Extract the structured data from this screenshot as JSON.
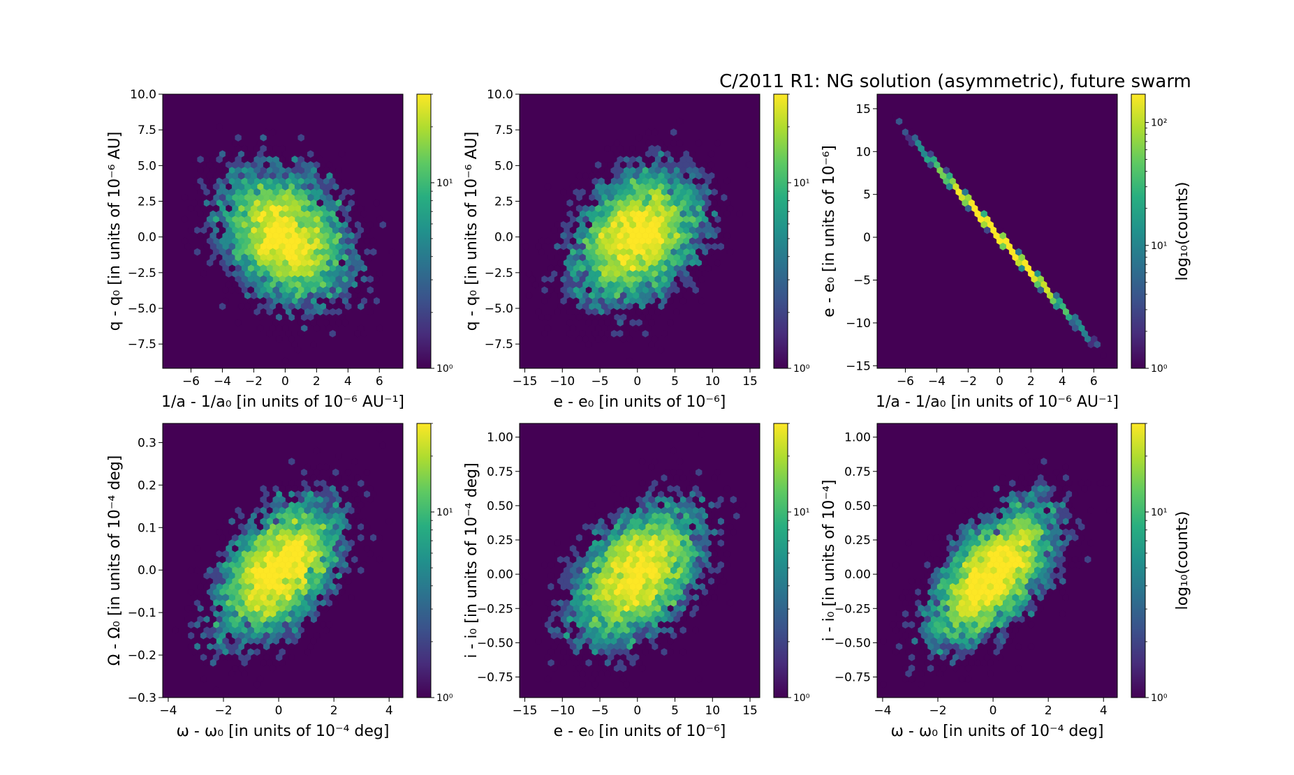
{
  "figure": {
    "title": "C/2011 R1: NG solution (asymmetric), future swarm"
  },
  "chart_data": [
    {
      "type": "heatmap",
      "subtype": "hexbin",
      "panel": "top-left",
      "xlabel": "1/a - 1/a₀ [in units of 10⁻⁶ AU⁻¹]",
      "ylabel": "q - q₀ [in units of 10⁻⁶ AU]",
      "xlim": [
        -7.8,
        7.5
      ],
      "ylim": [
        -9.2,
        10.0
      ],
      "xticks": [
        -6,
        -4,
        -2,
        0,
        2,
        4,
        6
      ],
      "xtick_labels": [
        "−6",
        "−4",
        "−2",
        "0",
        "2",
        "4",
        "6"
      ],
      "yticks": [
        -7.5,
        -5.0,
        -2.5,
        0.0,
        2.5,
        5.0,
        7.5,
        10.0
      ],
      "ytick_labels": [
        "−7.5",
        "−5.0",
        "−2.5",
        "0.0",
        "2.5",
        "5.0",
        "7.5",
        "10.0"
      ],
      "distribution": {
        "mean": [
          0,
          0
        ],
        "sd": [
          2.0,
          2.3
        ],
        "corr": -0.3
      },
      "colorbar": {
        "scale": "log",
        "min": 1,
        "max": 30,
        "ticks": [
          1,
          10
        ],
        "tick_labels": [
          "10⁰",
          "10¹"
        ],
        "label": ""
      }
    },
    {
      "type": "heatmap",
      "subtype": "hexbin",
      "panel": "top-middle",
      "xlabel": "e - e₀ [in units of 10⁻⁶]",
      "ylabel": "q - q₀ [in units of 10⁻⁶ AU]",
      "xlim": [
        -15.7,
        16.3
      ],
      "ylim": [
        -9.2,
        10.0
      ],
      "xticks": [
        -15,
        -10,
        -5,
        0,
        5,
        10,
        15
      ],
      "xtick_labels": [
        "−15",
        "−10",
        "−5",
        "0",
        "5",
        "10",
        "15"
      ],
      "yticks": [
        -7.5,
        -5.0,
        -2.5,
        0.0,
        2.5,
        5.0,
        7.5,
        10.0
      ],
      "ytick_labels": [
        "−7.5",
        "−5.0",
        "−2.5",
        "0.0",
        "2.5",
        "5.0",
        "7.5",
        "10.0"
      ],
      "distribution": {
        "mean": [
          0,
          0
        ],
        "sd": [
          4.2,
          2.3
        ],
        "corr": 0.3
      },
      "colorbar": {
        "scale": "log",
        "min": 1,
        "max": 30,
        "ticks": [
          1,
          10
        ],
        "tick_labels": [
          "10⁰",
          "10¹"
        ],
        "label": ""
      }
    },
    {
      "type": "heatmap",
      "subtype": "hexbin",
      "panel": "top-right",
      "title": "C/2011 R1: NG solution (asymmetric), future swarm",
      "xlabel": "1/a - 1/a₀ [in units of 10⁻⁶ AU⁻¹]",
      "ylabel": "e - e₀ [in units of 10⁻⁶]",
      "xlim": [
        -7.8,
        7.5
      ],
      "ylim": [
        -15.3,
        16.7
      ],
      "xticks": [
        -6,
        -4,
        -2,
        0,
        2,
        4,
        6
      ],
      "xtick_labels": [
        "−6",
        "−4",
        "−2",
        "0",
        "2",
        "4",
        "6"
      ],
      "yticks": [
        -15,
        -10,
        -5,
        0,
        5,
        10,
        15
      ],
      "ytick_labels": [
        "−15",
        "−10",
        "−5",
        "0",
        "5",
        "10",
        "15"
      ],
      "line": {
        "slope": -2.07,
        "x_range": [
          -7.7,
          7.1
        ]
      },
      "distribution": {
        "mean": [
          0,
          0
        ],
        "sd": [
          2.0,
          4.1
        ],
        "corr": -1.0
      },
      "colorbar": {
        "scale": "log",
        "min": 1,
        "max": 170,
        "ticks": [
          1,
          10,
          100
        ],
        "tick_labels": [
          "10⁰",
          "10¹",
          "10²"
        ],
        "label": "log₁₀(counts)"
      }
    },
    {
      "type": "heatmap",
      "subtype": "hexbin",
      "panel": "bottom-left",
      "xlabel": "ω - ω₀ [in units of 10⁻⁴ deg]",
      "ylabel": "Ω - Ω₀ [in units of 10⁻⁴ deg]",
      "xlim": [
        -4.2,
        4.5
      ],
      "ylim": [
        -0.3,
        0.345
      ],
      "xticks": [
        -4,
        -2,
        0,
        2,
        4
      ],
      "xtick_labels": [
        "−4",
        "−2",
        "0",
        "2",
        "4"
      ],
      "yticks": [
        -0.3,
        -0.2,
        -0.1,
        0.0,
        0.1,
        0.2,
        0.3
      ],
      "ytick_labels": [
        "−0.3",
        "−0.2",
        "−0.1",
        "0.0",
        "0.1",
        "0.2",
        "0.3"
      ],
      "distribution": {
        "mean": [
          0,
          0
        ],
        "sd": [
          1.1,
          0.08
        ],
        "corr": 0.5
      },
      "colorbar": {
        "scale": "log",
        "min": 1,
        "max": 30,
        "ticks": [
          1,
          10
        ],
        "tick_labels": [
          "10⁰",
          "10¹"
        ],
        "label": ""
      }
    },
    {
      "type": "heatmap",
      "subtype": "hexbin",
      "panel": "bottom-middle",
      "xlabel": "e - e₀ [in units of 10⁻⁶]",
      "ylabel": "i - i₀ [in units of 10⁻⁴ deg]",
      "xlim": [
        -15.7,
        16.3
      ],
      "ylim": [
        -0.9,
        1.1
      ],
      "xticks": [
        -15,
        -10,
        -5,
        0,
        5,
        10,
        15
      ],
      "xtick_labels": [
        "−15",
        "−10",
        "−5",
        "0",
        "5",
        "10",
        "15"
      ],
      "yticks": [
        -0.75,
        -0.5,
        -0.25,
        0.0,
        0.25,
        0.5,
        0.75,
        1.0
      ],
      "ytick_labels": [
        "−0.75",
        "−0.50",
        "−0.25",
        "0.00",
        "0.25",
        "0.50",
        "0.75",
        "1.00"
      ],
      "distribution": {
        "mean": [
          0,
          0
        ],
        "sd": [
          4.2,
          0.25
        ],
        "corr": 0.45
      },
      "colorbar": {
        "scale": "log",
        "min": 1,
        "max": 30,
        "ticks": [
          1,
          10
        ],
        "tick_labels": [
          "10⁰",
          "10¹"
        ],
        "label": ""
      }
    },
    {
      "type": "heatmap",
      "subtype": "hexbin",
      "panel": "bottom-right",
      "xlabel": "ω - ω₀ [in units of 10⁻⁴ deg]",
      "ylabel": "i - i₀ [in units of 10⁻⁴]",
      "xlim": [
        -4.2,
        4.5
      ],
      "ylim": [
        -0.9,
        1.1
      ],
      "xticks": [
        -4,
        -2,
        0,
        2,
        4
      ],
      "xtick_labels": [
        "−4",
        "−2",
        "0",
        "2",
        "4"
      ],
      "yticks": [
        -0.75,
        -0.5,
        -0.25,
        0.0,
        0.25,
        0.5,
        0.75,
        1.0
      ],
      "ytick_labels": [
        "−0.75",
        "−0.50",
        "−0.25",
        "0.00",
        "0.25",
        "0.50",
        "0.75",
        "1.00"
      ],
      "distribution": {
        "mean": [
          0,
          0
        ],
        "sd": [
          1.1,
          0.25
        ],
        "corr": 0.6
      },
      "colorbar": {
        "scale": "log",
        "min": 1,
        "max": 30,
        "ticks": [
          1,
          10
        ],
        "tick_labels": [
          "10⁰",
          "10¹"
        ],
        "label": "log₁₀(counts)"
      }
    }
  ]
}
